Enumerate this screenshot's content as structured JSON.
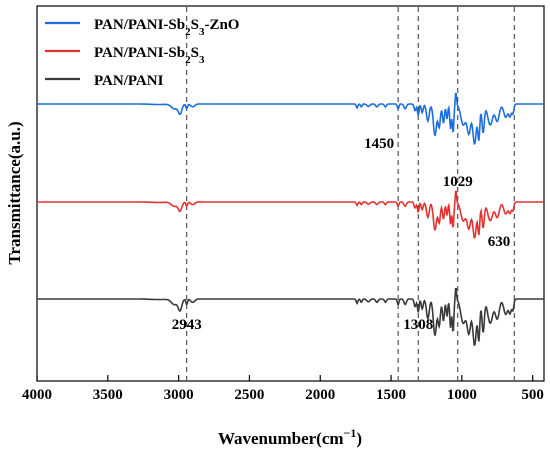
{
  "chart_data": {
    "type": "line",
    "title": "",
    "xlabel": "Wavenumber(cm",
    "xlabel_sup": "−1",
    "xlabel_close": ")",
    "ylabel": "Transmittance(a.u.)",
    "xlim": [
      4000,
      420
    ],
    "x_reversed": true,
    "xticks": [
      4000,
      3500,
      3000,
      2500,
      2000,
      1500,
      1000,
      500
    ],
    "y_ticks_shown": false,
    "grid": false,
    "legend_position": "top-left",
    "series": [
      {
        "name": "PAN/PANI-Sb2S3-ZnO",
        "legend_main": "PAN/PANI-Sb",
        "legend_sub1": "2",
        "legend_mid": "S",
        "legend_sub2": "3",
        "legend_tail": "-ZnO",
        "color": "#1c6fe0",
        "offset": 0,
        "legend_order": 0
      },
      {
        "name": "PAN/PANI-Sb2S3",
        "legend_main": "PAN/PANI-Sb",
        "legend_sub1": "2",
        "legend_mid": "S",
        "legend_sub2": "3",
        "legend_tail": "",
        "color": "#e23232",
        "offset": 1,
        "legend_order": 1
      },
      {
        "name": "PAN/PANI",
        "legend_main": "PAN/PANI",
        "legend_sub1": "",
        "legend_mid": "",
        "legend_sub2": "",
        "legend_tail": "",
        "color": "#3a3a3a",
        "offset": 2,
        "legend_order": 2
      }
    ],
    "reference_lines": [
      2943,
      1450,
      1308,
      1029,
      630
    ],
    "annotations": [
      {
        "text": "1450",
        "x": 1450,
        "row": 0,
        "side": "left"
      },
      {
        "text": "1029",
        "x": 1029,
        "row": 0,
        "side": "below"
      },
      {
        "text": "630",
        "x": 630,
        "row": 1,
        "side": "left"
      },
      {
        "text": "2943",
        "x": 2943,
        "row": 2,
        "side": "below"
      },
      {
        "text": "1308",
        "x": 1308,
        "row": 2,
        "side": "below"
      }
    ]
  }
}
